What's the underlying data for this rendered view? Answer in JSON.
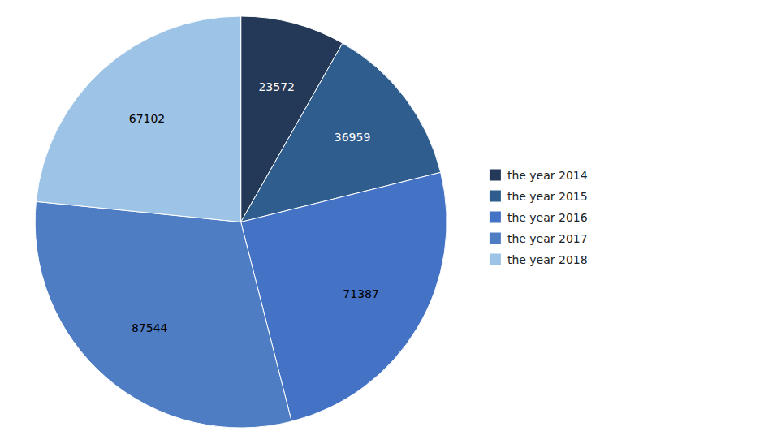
{
  "chart_data": {
    "type": "pie",
    "categories": [
      "the year 2014",
      "the year 2015",
      "the year 2016",
      "the year 2017",
      "the year 2018"
    ],
    "values": [
      23572,
      36959,
      71387,
      87544,
      67102
    ],
    "colors": [
      "#243858",
      "#2E5D8E",
      "#4472C4",
      "#4F7DC4",
      "#9DC3E6"
    ],
    "data_labels": true,
    "legend": "right"
  }
}
